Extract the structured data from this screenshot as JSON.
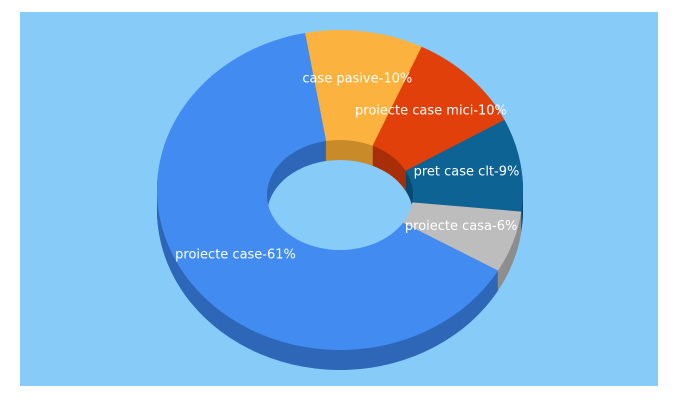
{
  "chart_data": {
    "type": "donut3d",
    "values": [
      10,
      10,
      9,
      6,
      61
    ],
    "value_labels": [
      "case pasive-10%",
      "proiecte case mici-10%",
      "pret case clt-9%",
      "proiecte casa-6%",
      "proiecte case-61%"
    ],
    "colors": [
      "#fbb23e",
      "#e2400b",
      "#0e6395",
      "#bdbdbd",
      "#418bf1"
    ],
    "side_colors": [
      "#c98a2a",
      "#a82f08",
      "#0a4a70",
      "#8e8e8e",
      "#2f67b8"
    ]
  }
}
